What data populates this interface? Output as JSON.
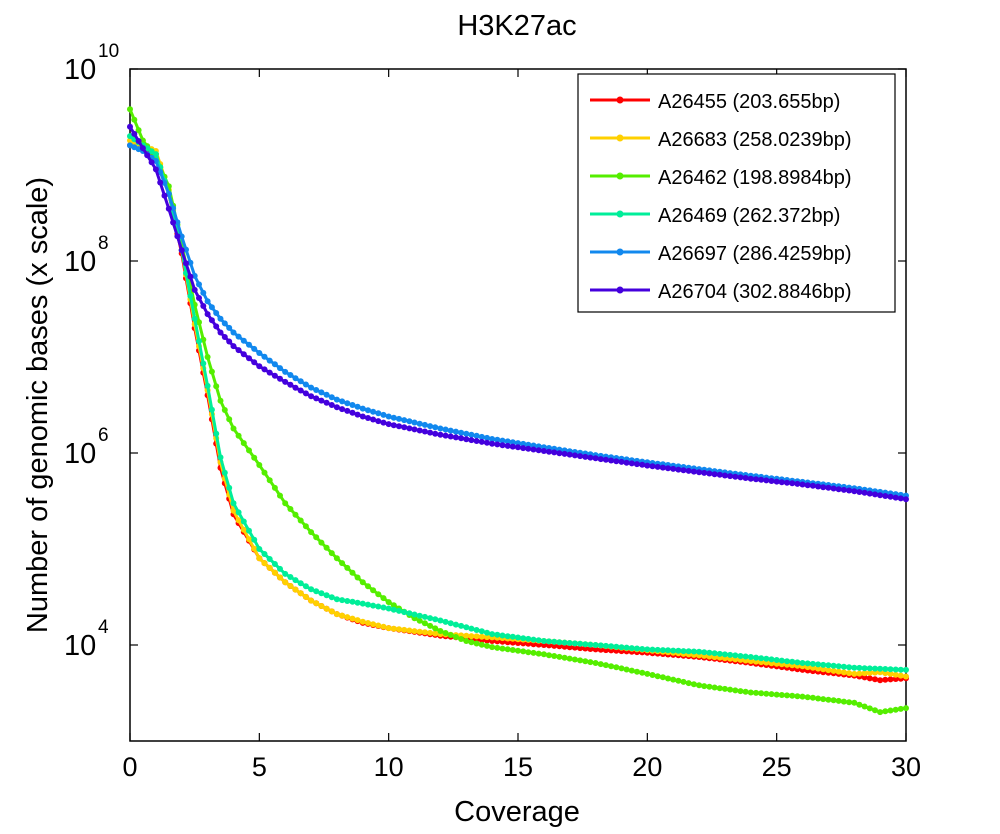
{
  "chart_data": {
    "type": "line",
    "title": "H3K27ac",
    "xlabel": "Coverage",
    "ylabel": "Number of genomic bases (x scale)",
    "xlim": [
      0,
      30
    ],
    "ylim": [
      1000,
      10000000000
    ],
    "yscale": "log",
    "grid": false,
    "legend_position": "top-right",
    "x_ticks": [
      {
        "value": 0,
        "label": "0"
      },
      {
        "value": 5,
        "label": "5"
      },
      {
        "value": 10,
        "label": "10"
      },
      {
        "value": 15,
        "label": "15"
      },
      {
        "value": 20,
        "label": "20"
      },
      {
        "value": 25,
        "label": "25"
      },
      {
        "value": 30,
        "label": "30"
      }
    ],
    "y_ticks": [
      {
        "value": 10000,
        "base": "10",
        "exp": "4"
      },
      {
        "value": 1000000,
        "base": "10",
        "exp": "6"
      },
      {
        "value": 100000000,
        "base": "10",
        "exp": "8"
      },
      {
        "value": 10000000000,
        "base": "10",
        "exp": "10"
      }
    ],
    "series": [
      {
        "name": "A26455 (203.655bp)",
        "color": "#ff0000",
        "points": [
          [
            0,
            1600000000.0
          ],
          [
            0.5,
            1500000000.0
          ],
          [
            1,
            1300000000.0
          ],
          [
            1.5,
            500000000.0
          ],
          [
            2,
            120000000.0
          ],
          [
            2.5,
            20000000.0
          ],
          [
            3,
            4000000.0
          ],
          [
            3.5,
            700000.0
          ],
          [
            4,
            230000.0
          ],
          [
            5,
            80000.0
          ],
          [
            6,
            45000.0
          ],
          [
            7,
            29000.0
          ],
          [
            8,
            21000.0
          ],
          [
            9,
            17000.0
          ],
          [
            10,
            15000.0
          ],
          [
            12,
            12500.0
          ],
          [
            14,
            11000.0
          ],
          [
            16,
            10000.0
          ],
          [
            18,
            9000.0
          ],
          [
            20,
            8300.0
          ],
          [
            22,
            7500.0
          ],
          [
            24,
            6500.0
          ],
          [
            26,
            5500.0
          ],
          [
            28,
            4800.0
          ],
          [
            29,
            4300.0
          ],
          [
            30,
            4500.0
          ]
        ]
      },
      {
        "name": "A26683 (258.0239bp)",
        "color": "#ffd000",
        "points": [
          [
            0,
            1800000000.0
          ],
          [
            0.5,
            1600000000.0
          ],
          [
            1,
            1400000000.0
          ],
          [
            1.5,
            550000000.0
          ],
          [
            2,
            130000000.0
          ],
          [
            2.5,
            22000000.0
          ],
          [
            3,
            4500000.0
          ],
          [
            3.5,
            800000.0
          ],
          [
            4,
            250000.0
          ],
          [
            5,
            80000.0
          ],
          [
            6,
            45000.0
          ],
          [
            7,
            29000.0
          ],
          [
            8,
            21000.0
          ],
          [
            9,
            17500.0
          ],
          [
            10,
            15000.0
          ],
          [
            12,
            13000.0
          ],
          [
            14,
            12000.0
          ],
          [
            16,
            11000.0
          ],
          [
            18,
            10000.0
          ],
          [
            20,
            8800.0
          ],
          [
            22,
            7800.0
          ],
          [
            24,
            6800.0
          ],
          [
            26,
            6000.0
          ],
          [
            28,
            5000.0
          ],
          [
            29,
            5200.0
          ],
          [
            30,
            4700.0
          ]
        ]
      },
      {
        "name": "A26462 (198.8984bp)",
        "color": "#55ee00",
        "points": [
          [
            0,
            3800000000.0
          ],
          [
            0.5,
            1800000000.0
          ],
          [
            1,
            1200000000.0
          ],
          [
            1.5,
            600000000.0
          ],
          [
            2,
            150000000.0
          ],
          [
            2.5,
            35000000.0
          ],
          [
            3,
            10000000.0
          ],
          [
            3.5,
            3500000.0
          ],
          [
            4,
            1800000.0
          ],
          [
            5,
            750000.0
          ],
          [
            6,
            300000.0
          ],
          [
            7,
            150000.0
          ],
          [
            8,
            80000.0
          ],
          [
            9,
            45000.0
          ],
          [
            10,
            28000.0
          ],
          [
            11,
            19000.0
          ],
          [
            12,
            14000.0
          ],
          [
            13,
            11000.0
          ],
          [
            14,
            9500.0
          ],
          [
            16,
            8000.0
          ],
          [
            18,
            6500.0
          ],
          [
            20,
            5000.0
          ],
          [
            22,
            3800.0
          ],
          [
            24,
            3200.0
          ],
          [
            26,
            2900.0
          ],
          [
            28,
            2500.0
          ],
          [
            29,
            2000.0
          ],
          [
            30,
            2200.0
          ]
        ]
      },
      {
        "name": "A26469 (262.372bp)",
        "color": "#00ee99",
        "points": [
          [
            0,
            2000000000.0
          ],
          [
            0.5,
            1600000000.0
          ],
          [
            1,
            1300000000.0
          ],
          [
            1.5,
            500000000.0
          ],
          [
            2,
            130000000.0
          ],
          [
            2.5,
            25000000.0
          ],
          [
            3,
            5000000.0
          ],
          [
            3.5,
            900000.0
          ],
          [
            4,
            300000.0
          ],
          [
            5,
            100000.0
          ],
          [
            6,
            55000.0
          ],
          [
            7,
            38000.0
          ],
          [
            8,
            30000.0
          ],
          [
            9,
            27000.0
          ],
          [
            10,
            24000.0
          ],
          [
            12,
            18000.0
          ],
          [
            14,
            13000.0
          ],
          [
            16,
            11000.0
          ],
          [
            18,
            10000.0
          ],
          [
            20,
            9000.0
          ],
          [
            22,
            8500.0
          ],
          [
            24,
            7500.0
          ],
          [
            26,
            6500.0
          ],
          [
            28,
            5800.0
          ],
          [
            30,
            5500.0
          ]
        ]
      },
      {
        "name": "A26697 (286.4259bp)",
        "color": "#1188ee",
        "points": [
          [
            0,
            1600000000.0
          ],
          [
            0.5,
            1400000000.0
          ],
          [
            1,
            1100000000.0
          ],
          [
            1.5,
            500000000.0
          ],
          [
            2,
            180000000.0
          ],
          [
            2.5,
            70000000.0
          ],
          [
            3,
            38000000.0
          ],
          [
            3.5,
            25000000.0
          ],
          [
            4,
            18000000.0
          ],
          [
            5,
            11000000.0
          ],
          [
            6,
            7000000.0
          ],
          [
            7,
            4800000.0
          ],
          [
            8,
            3600000.0
          ],
          [
            9,
            2900000.0
          ],
          [
            10,
            2400000.0
          ],
          [
            12,
            1800000.0
          ],
          [
            14,
            1400000.0
          ],
          [
            16,
            1150000.0
          ],
          [
            18,
            950000.0
          ],
          [
            20,
            800000.0
          ],
          [
            22,
            680000.0
          ],
          [
            24,
            580000.0
          ],
          [
            26,
            500000.0
          ],
          [
            28,
            430000.0
          ],
          [
            30,
            360000.0
          ]
        ]
      },
      {
        "name": "A26704 (302.8846bp)",
        "color": "#4400dd",
        "points": [
          [
            0,
            2500000000.0
          ],
          [
            0.5,
            1500000000.0
          ],
          [
            1,
            900000000.0
          ],
          [
            1.5,
            350000000.0
          ],
          [
            2,
            130000000.0
          ],
          [
            2.5,
            50000000.0
          ],
          [
            3,
            28000000.0
          ],
          [
            3.5,
            18000000.0
          ],
          [
            4,
            13000000.0
          ],
          [
            5,
            8000000.0
          ],
          [
            6,
            5500000.0
          ],
          [
            7,
            3900000.0
          ],
          [
            8,
            3000000.0
          ],
          [
            9,
            2400000.0
          ],
          [
            10,
            2000000.0
          ],
          [
            12,
            1550000.0
          ],
          [
            14,
            1250000.0
          ],
          [
            16,
            1050000.0
          ],
          [
            18,
            880000.0
          ],
          [
            20,
            740000.0
          ],
          [
            22,
            630000.0
          ],
          [
            24,
            540000.0
          ],
          [
            26,
            470000.0
          ],
          [
            28,
            400000.0
          ],
          [
            30,
            330000.0
          ]
        ]
      }
    ]
  }
}
